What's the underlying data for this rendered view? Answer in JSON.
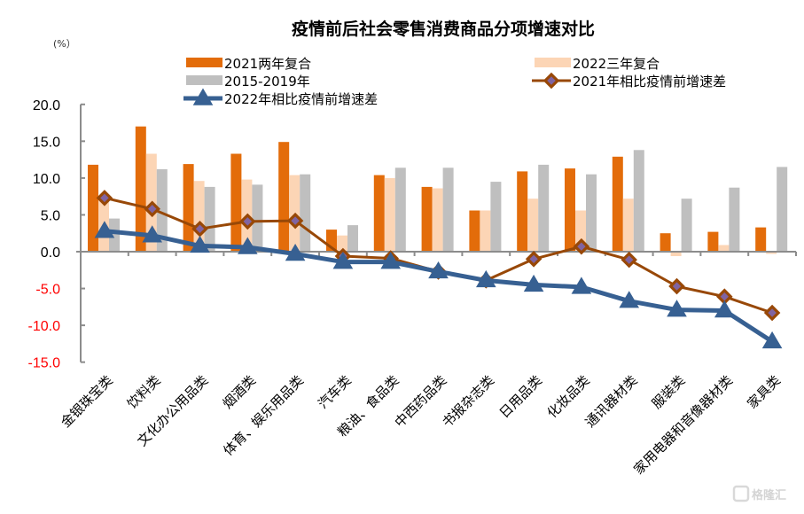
{
  "chart_data": {
    "type": "bar",
    "title": "疫情前后社会零售消费商品分项增速对比",
    "ylabel": "(%）",
    "xlabel": "",
    "ylim": [
      -15,
      20
    ],
    "yticks": [
      20,
      15,
      10,
      5,
      0,
      -5,
      -10,
      -15
    ],
    "ytick_labels": [
      "20.0",
      "15.0",
      "10.0",
      "5.0",
      "0.0",
      "-5.0",
      "-10.0",
      "-15.0"
    ],
    "grid": false,
    "legend_position": "top",
    "categories": [
      "金银珠宝类",
      "饮料类",
      "文化办公用品类",
      "烟酒类",
      "体育、娱乐用品类",
      "汽车类",
      "粮油、食品类",
      "中西药品类",
      "书报杂志类",
      "日用品类",
      "化妆品类",
      "通讯器材类",
      "服装类",
      "家用电器和音像器材类",
      "家具类"
    ],
    "series": [
      {
        "name": "2021两年复合",
        "kind": "bar",
        "color": "#E36C0A",
        "values": [
          11.8,
          17.0,
          11.9,
          13.3,
          14.9,
          3.0,
          10.4,
          8.8,
          5.6,
          10.9,
          11.3,
          12.9,
          2.5,
          2.7,
          3.3
        ]
      },
      {
        "name": "2022三年复合",
        "kind": "bar",
        "color": "#FCD5B5",
        "values": [
          7.5,
          13.3,
          9.6,
          9.8,
          10.4,
          2.2,
          10.0,
          8.6,
          5.6,
          7.2,
          5.6,
          7.2,
          -0.6,
          0.9,
          -0.3
        ]
      },
      {
        "name": "2015-2019年",
        "kind": "bar",
        "color": "#BFBFBF",
        "values": [
          4.5,
          11.2,
          8.8,
          9.1,
          10.5,
          3.6,
          11.4,
          11.4,
          9.5,
          11.8,
          10.5,
          13.8,
          7.2,
          8.7,
          11.5
        ]
      },
      {
        "name": "2021年相比疫情前增速差",
        "kind": "line",
        "marker": "diamond",
        "color": "#984807",
        "marker_fill": "#8064A2",
        "values": [
          7.3,
          5.8,
          3.1,
          4.1,
          4.2,
          -0.6,
          -0.9,
          -2.7,
          -3.9,
          -1.0,
          0.7,
          -1.1,
          -4.7,
          -6.1,
          -8.3
        ]
      },
      {
        "name": "2022年相比疫情前增速差",
        "kind": "line",
        "marker": "triangle",
        "color": "#376092",
        "values": [
          2.8,
          2.2,
          0.8,
          0.6,
          -0.3,
          -1.4,
          -1.4,
          -2.7,
          -3.9,
          -4.5,
          -4.8,
          -6.7,
          -7.9,
          -8.0,
          -12.2
        ]
      }
    ],
    "negative_tick_color": "#FF0000"
  },
  "watermark": "格隆汇"
}
